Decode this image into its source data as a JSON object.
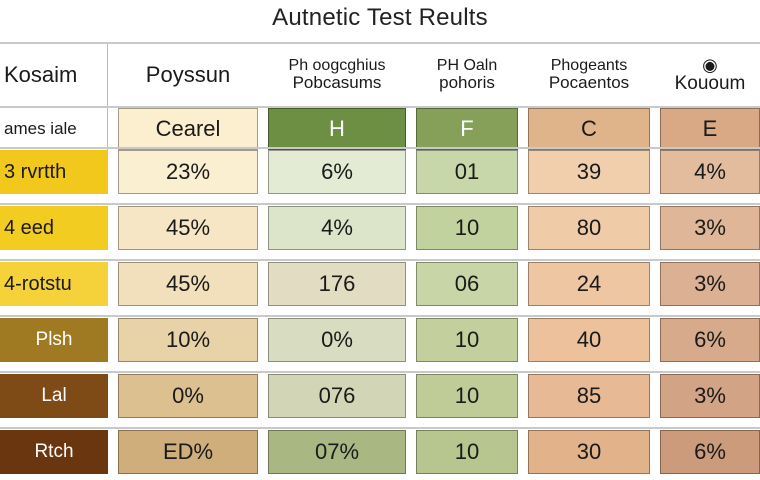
{
  "title": "Autnetic Test Reults",
  "chart_data": {
    "type": "table",
    "title": "Autnetic Test Reults",
    "corner_label": "Kosaim",
    "column_headers": [
      {
        "top": "Poyssun",
        "bottom": ""
      },
      {
        "top": "Ph oogcghius",
        "bottom": "Pobcasums"
      },
      {
        "top": "PH Oaln",
        "bottom": "pohoris"
      },
      {
        "top": "Phogeants",
        "bottom": "Pocaentos"
      },
      {
        "top": "◉",
        "bottom": "Kououm"
      }
    ],
    "sub_row_label": "ames iale",
    "sub_headers": [
      "Cearel",
      "H",
      "F",
      "C",
      "E"
    ],
    "rows": [
      {
        "label": "3 rvrtth",
        "values": [
          "23%",
          "6%",
          "01",
          "39",
          "4%"
        ]
      },
      {
        "label": "4 eed",
        "values": [
          "45%",
          "4%",
          "10",
          "80",
          "3%"
        ]
      },
      {
        "label": "4-rotstu",
        "values": [
          "45%",
          "176",
          "06",
          "24",
          "3%"
        ]
      },
      {
        "label": "Plsh",
        "values": [
          "10%",
          "0%",
          "10",
          "40",
          "6%"
        ]
      },
      {
        "label": "Lal",
        "values": [
          "0%",
          "076",
          "10",
          "85",
          "3%"
        ]
      },
      {
        "label": "Rtch",
        "values": [
          "ED%",
          "07%",
          "10",
          "30",
          "6%"
        ]
      }
    ]
  },
  "colors": {
    "row_label_bg": [
      "#f3c81c",
      "#f3cc22",
      "#f5d23a",
      "#a07a22",
      "#7e4a16",
      "#6a3610"
    ],
    "row_label_text": [
      "#1a1a1a",
      "#1a1a1a",
      "#1a1a1a",
      "#ffffff",
      "#ffffff",
      "#ffffff"
    ],
    "subheader_bg": [
      "#fbefd0",
      "#6c8f43",
      "#86a05a",
      "#e0b48a",
      "#d8a984"
    ],
    "subheader_text": [
      "#1a1a1a",
      "#ffffff",
      "#ffffff",
      "#1a1a1a",
      "#1a1a1a"
    ],
    "column_bg": [
      [
        "#fbefd2",
        "#e3ebd4",
        "#c8d7a9",
        "#f1cfad",
        "#e3bc9e"
      ],
      [
        "#f6e6c6",
        "#dce5c9",
        "#c1d29f",
        "#efcba8",
        "#dfb698"
      ],
      [
        "#f2dfbc",
        "#e2ddc2",
        "#c8d5a6",
        "#eec6a2",
        "#dcb193"
      ],
      [
        "#e8d2a8",
        "#d8dcc0",
        "#c3d09e",
        "#ecc19c",
        "#d7aa8c"
      ],
      [
        "#dcc090",
        "#d2d6b6",
        "#bfcc98",
        "#e7b994",
        "#d2a384"
      ],
      [
        "#cfae7c",
        "#a9b883",
        "#b7c58e",
        "#e2b28a",
        "#cb9b7b"
      ]
    ]
  }
}
